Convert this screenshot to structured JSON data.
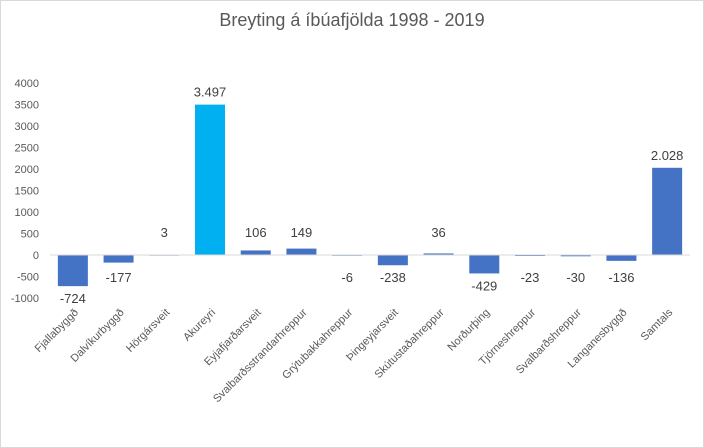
{
  "chart_data": {
    "type": "bar",
    "title": "Breyting á íbúafjölda 1998 - 2019",
    "xlabel": "",
    "ylabel": "",
    "ylim": [
      -1000,
      4000
    ],
    "yticks": [
      4000,
      3500,
      3000,
      2500,
      2000,
      1500,
      1000,
      500,
      0,
      -500,
      -1000
    ],
    "grid": false,
    "categories": [
      "Fjallabyggð",
      "Dalvíkurbyggð",
      "Hörgársveit",
      "Akureyri",
      "Eyjafjarðarsveit",
      "Svalbarðsstrandarhreppur",
      "Grýtubakkahreppur",
      "Þingeyjarsveit",
      "Skútustaðahreppur",
      "Norðurþing",
      "Tjörneshreppur",
      "Svalbarðshreppur",
      "Langanesbyggð",
      "Samtals"
    ],
    "values": [
      -724,
      -177,
      3,
      3497,
      106,
      149,
      -6,
      -238,
      36,
      -429,
      -23,
      -30,
      -136,
      2028
    ],
    "data_labels": [
      "-724",
      "-177",
      "3",
      "3.497",
      "106",
      "149",
      "-6",
      "-238",
      "36",
      "-429",
      "-23",
      "-30",
      "-136",
      "2.028"
    ],
    "colors": {
      "default": "#4472c4",
      "highlight": "#00b0f0",
      "axis": "#d9d9d9"
    },
    "highlight_index": 3
  }
}
